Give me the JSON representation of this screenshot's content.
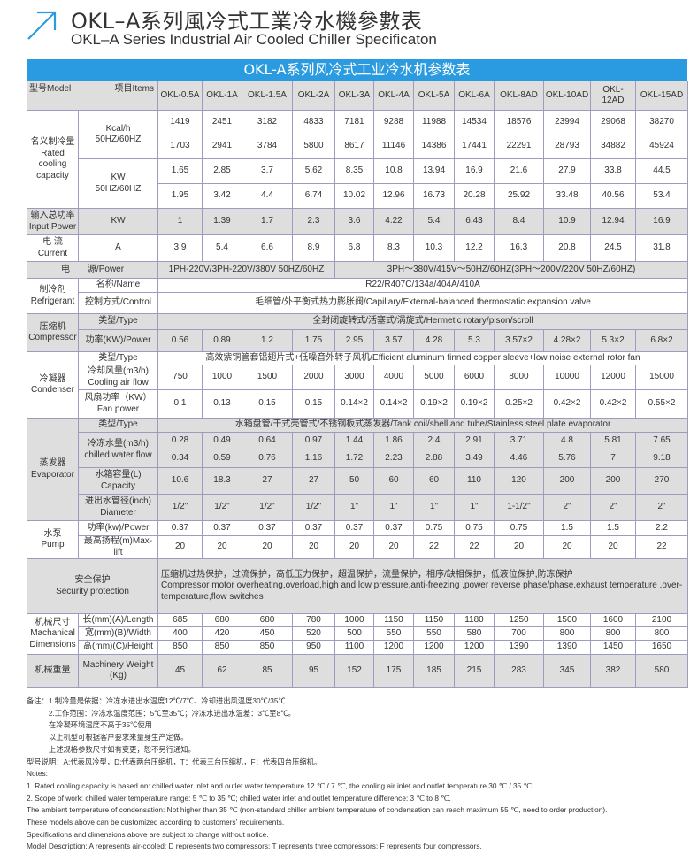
{
  "heading": {
    "cn": "OKL–A系列風冷式工業冷水機參數表",
    "en": "OKL–A Series Industrial Air Cooled Chiller Specificaton",
    "icon": "arrow-up-right-icon",
    "accent": "#2a9be0"
  },
  "table": {
    "title": "OKL-A系列风冷式工业冷水机参数表",
    "header": {
      "model": "型号Model",
      "items": "项目Items",
      "models": [
        "OKL-0.5A",
        "OKL-1A",
        "OKL-1.5A",
        "OKL-2A",
        "OKL-3A",
        "OKL-4A",
        "OKL-5A",
        "OKL-6A",
        "OKL-8AD",
        "OKL-10AD",
        "OKL-12AD",
        "OKL-15AD"
      ]
    },
    "sections": [
      {
        "label": "名义制冷量\nRated\ncooling\ncapacity",
        "shade": false,
        "rows": [
          {
            "item": "Kcal/h\n50HZ/60HZ",
            "lines": [
              [
                "1419",
                "2451",
                "3182",
                "4833",
                "7181",
                "9288",
                "11988",
                "14534",
                "18576",
                "23994",
                "29068",
                "38270"
              ],
              [
                "1703",
                "2941",
                "3784",
                "5800",
                "8617",
                "11146",
                "14386",
                "17441",
                "22291",
                "28793",
                "34882",
                "45924"
              ]
            ]
          },
          {
            "item": "KW\n50HZ/60HZ",
            "lines": [
              [
                "1.65",
                "2.85",
                "3.7",
                "5.62",
                "8.35",
                "10.8",
                "13.94",
                "16.9",
                "21.6",
                "27.9",
                "33.8",
                "44.5"
              ],
              [
                "1.95",
                "3.42",
                "4.4",
                "6.74",
                "10.02",
                "12.96",
                "16.73",
                "20.28",
                "25.92",
                "33.48",
                "40.56",
                "53.4"
              ]
            ]
          }
        ]
      },
      {
        "label": "输入总功率\nInput Power",
        "shade": true,
        "rows": [
          {
            "item": "KW",
            "lines": [
              [
                "1",
                "1.39",
                "1.7",
                "2.3",
                "3.6",
                "4.22",
                "5.4",
                "6.43",
                "8.4",
                "10.9",
                "12.94",
                "16.9"
              ]
            ]
          }
        ]
      },
      {
        "label": "电 流\nCurrent",
        "shade": false,
        "rows": [
          {
            "item": "A",
            "lines": [
              [
                "3.9",
                "5.4",
                "6.6",
                "8.9",
                "6.8",
                "8.3",
                "10.3",
                "12.2",
                "16.3",
                "20.8",
                "24.5",
                "31.8"
              ]
            ]
          }
        ]
      },
      {
        "label": "电　　源/Power",
        "shade": true,
        "rows": [
          {
            "item": null,
            "lines": [
              [
                {
                  "text": "1PH-220V/3PH-220V/380V 50HZ/60HZ",
                  "cols": 4
                },
                {
                  "text": "3PH～380V/415V～50HZ/60HZ(3PH～200V/220V  50HZ/60HZ)",
                  "cols": 8
                }
              ]
            ]
          }
        ]
      },
      {
        "label": "制冷剂\nRefrigerant",
        "shade": false,
        "rows": [
          {
            "item": "名称/Name",
            "lines": [
              "R22/R407C/134a/404A/410A"
            ]
          },
          {
            "item": "控制方式/Control",
            "lines": [
              "毛细管/外平衡式热力膨胀阀/Capillary/External-balanced thermostatic expansion valve"
            ]
          }
        ]
      },
      {
        "label": "压缩机\nCompressor",
        "shade": true,
        "rows": [
          {
            "item": "类型/Type",
            "lines": [
              "全封闭旋转式/活塞式/涡旋式/Hermetic rotary/pison/scroll"
            ]
          },
          {
            "item": "功率(KW)/Power",
            "lines": [
              [
                "0.56",
                "0.89",
                "1.2",
                "1.75",
                "2.95",
                "3.57",
                "4.28",
                "5.3",
                "3.57×2",
                "4.28×2",
                "5.3×2",
                "6.8×2"
              ]
            ]
          }
        ]
      },
      {
        "label": "冷凝器\nCondenser",
        "shade": false,
        "rows": [
          {
            "item": "类型/Type",
            "lines": [
              "高效紫铜管套铝翅片式+低噪音外转子风机/Efficient aluminum finned copper sleeve+low noise external rotor fan"
            ]
          },
          {
            "item": "冷却风量(m3/h)\nCooling air flow",
            "lines": [
              [
                "750",
                "1000",
                "1500",
                "2000",
                "3000",
                "4000",
                "5000",
                "6000",
                "8000",
                "10000",
                "12000",
                "15000"
              ]
            ]
          },
          {
            "item": "风扇功率（KW）\nFan power",
            "lines": [
              [
                "0.1",
                "0.13",
                "0.15",
                "0.15",
                "0.14×2",
                "0.14×2",
                "0.19×2",
                "0.19×2",
                "0.25×2",
                "0.42×2",
                "0.42×2",
                "0.55×2"
              ]
            ]
          }
        ]
      },
      {
        "label": "蒸发器\nEvaporator",
        "shade": true,
        "rows": [
          {
            "item": "类型/Type",
            "lines": [
              "水箱盘管/干式壳管式/不锈钢板式蒸发器/Tank coil/shell and tube/Stainless steel plate evaporator"
            ]
          },
          {
            "item": "冷冻水量(m3/h)\nchilled water flow",
            "lines": [
              [
                "0.28",
                "0.49",
                "0.64",
                "0.97",
                "1.44",
                "1.86",
                "2.4",
                "2.91",
                "3.71",
                "4.8",
                "5.81",
                "7.65"
              ],
              [
                "0.34",
                "0.59",
                "0.76",
                "1.16",
                "1.72",
                "2.23",
                "2.88",
                "3.49",
                "4.46",
                "5.76",
                "7",
                "9.18"
              ]
            ]
          },
          {
            "item": "水箱容量(L)\nCapacity",
            "lines": [
              [
                "10.6",
                "18.3",
                "27",
                "27",
                "50",
                "60",
                "60",
                "110",
                "120",
                "200",
                "200",
                "270"
              ]
            ]
          },
          {
            "item": "进出水管径(inch)\nDiameter",
            "lines": [
              [
                "1/2\"",
                "1/2\"",
                "1/2\"",
                "1/2\"",
                "1\"",
                "1\"",
                "1\"",
                "1\"",
                "1-1/2\"",
                "2\"",
                "2\"",
                "2\""
              ]
            ]
          }
        ]
      },
      {
        "label": "水泵\nPump",
        "shade": false,
        "rows": [
          {
            "item": "功率(kw)/Power",
            "lines": [
              [
                "0.37",
                "0.37",
                "0.37",
                "0.37",
                "0.37",
                "0.37",
                "0.75",
                "0.75",
                "0.75",
                "1.5",
                "1.5",
                "2.2"
              ]
            ]
          },
          {
            "item": "最高扬程(m)Max-lift",
            "lines": [
              [
                "20",
                "20",
                "20",
                "20",
                "20",
                "20",
                "22",
                "22",
                "20",
                "20",
                "20",
                "22"
              ]
            ]
          }
        ]
      },
      {
        "label": "安全保护\nSecurity protection",
        "shade": true,
        "rows": [
          {
            "item": null,
            "lines": [
              "压缩机过热保护，过流保护，高低压力保护，超温保护，流量保护，相序/缺相保护，低液位保护,防冻保护\nCompressor motor overheating,overload,high and low pressure,anti-freezing ,power reverse phase/phase,exhaust temperature ,over-temperature,flow switches"
            ]
          }
        ]
      },
      {
        "label": "机械尺寸\nMachanical\nDimensions",
        "shade": false,
        "rows": [
          {
            "item": "长(mm)(A)/Length",
            "lines": [
              [
                "685",
                "680",
                "680",
                "780",
                "1000",
                "1150",
                "1150",
                "1180",
                "1250",
                "1500",
                "1600",
                "2100"
              ]
            ]
          },
          {
            "item": "宽(mm)(B)/Width",
            "lines": [
              [
                "400",
                "420",
                "450",
                "520",
                "500",
                "550",
                "550",
                "580",
                "700",
                "800",
                "800",
                "800"
              ]
            ]
          },
          {
            "item": "高(mm)(C)/Height",
            "lines": [
              [
                "850",
                "850",
                "850",
                "950",
                "1100",
                "1200",
                "1200",
                "1200",
                "1390",
                "1390",
                "1450",
                "1650"
              ]
            ]
          }
        ]
      },
      {
        "label": "机械重量",
        "shade": true,
        "rows": [
          {
            "item": "Machinery Weight\n(Kg)",
            "lines": [
              [
                "45",
                "62",
                "85",
                "95",
                "152",
                "175",
                "185",
                "215",
                "283",
                "345",
                "382",
                "580"
              ]
            ]
          }
        ]
      }
    ]
  },
  "notes": [
    "备注：1.制冷量是依据：冷冻水进出水温度12℃/7℃、冷却进出风温度30℃/35℃",
    "　　　2.工作范围：冷冻水温度范围：5℃至35℃；冷冻水进出水温差：3℃至8℃。",
    "　　　在冷凝环境温度不高于35℃使用",
    "　　　以上机型可根据客户要求来量身生产定做。",
    "　　　上述规格参数尺寸如有变更，恕不另行通知。",
    "型号说明：A:代表风冷型，D:代表两台压缩机，T：代表三台压缩机，F：代表四台压缩机。",
    "Notes:",
    "1. Rated cooling capacity is based on: chilled water inlet and outlet water temperature 12 ℃ / 7 ℃, the cooling air inlet and outlet temperature 30 ℃ / 35 ℃",
    "2. Scope of work: chilled water temperature range: 5 ℃ to 35 ℃; chilled water inlet and outlet temperature difference: 3 ℃ to 8 ℃.",
    "The ambient temperature of condensation: Not higher than 35 ℃ (non-standard chiller ambient temperature of condensation can reach maximum 55 ℃, need to order production).",
    "   These models above can be customized according to customers’ requirements.",
    "   Specifications and dimensions above are subject to change without notice.",
    "Model Description: A represents air-cooled; D represents two compressors; T represents three compressors; F represents four compressors."
  ]
}
